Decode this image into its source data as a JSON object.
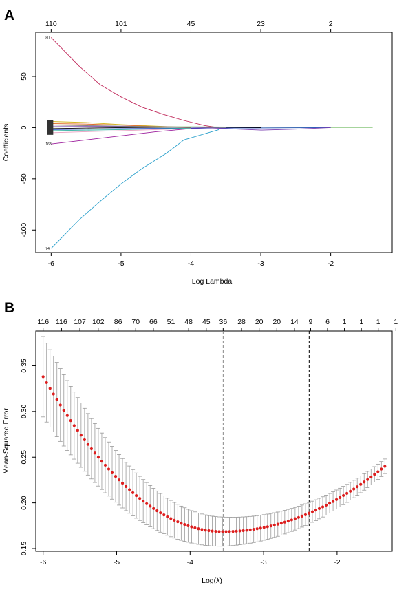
{
  "chart_data": [
    {
      "panel": "A",
      "type": "line",
      "xlabel": "Log Lambda",
      "ylabel": "Coefficients",
      "xlim": [
        -6.22,
        -1.12
      ],
      "ylim": [
        -122,
        93
      ],
      "x_ticks": [
        -6,
        -5,
        -4,
        -3,
        -2
      ],
      "y_ticks": [
        -100,
        -50,
        0,
        50
      ],
      "top_axis": [
        {
          "x": -6.0,
          "label": "110"
        },
        {
          "x": -5.0,
          "label": "101"
        },
        {
          "x": -4.0,
          "label": "45"
        },
        {
          "x": -3.0,
          "label": "23"
        },
        {
          "x": -2.0,
          "label": "2"
        }
      ],
      "series": [
        {
          "label": "80",
          "color": "#C0285A",
          "x": [
            -6.0,
            -5.6,
            -5.3,
            -5.0,
            -4.7,
            -4.4,
            -4.1,
            -3.8,
            -3.6
          ],
          "y": [
            88,
            60,
            42,
            30,
            20,
            13,
            7,
            2,
            0
          ]
        },
        {
          "label": "74",
          "color": "#2AA0CC",
          "x": [
            -6.0,
            -5.6,
            -5.3,
            -5.0,
            -4.7,
            -4.35,
            -4.1,
            -3.8,
            -3.6
          ],
          "y": [
            -118,
            -90,
            -72,
            -55,
            -40,
            -25,
            -12,
            -6,
            -2
          ]
        },
        {
          "label": "168",
          "color": "#9C1E9C",
          "x": [
            -6.0,
            -5.5,
            -5.0,
            -4.5,
            -4.0,
            -3.6
          ],
          "y": [
            -16,
            -12,
            -8,
            -4,
            -1,
            0
          ]
        },
        {
          "label": "",
          "color": "#4DA83A",
          "x": [
            -6.0,
            -5.0,
            -4.0,
            -3.0,
            -2.0,
            -1.4
          ],
          "y": [
            0.5,
            0.8,
            0.8,
            0.5,
            0.3,
            0.2
          ]
        },
        {
          "label": "",
          "color": "#D4B622",
          "x": [
            -6.0,
            -5.5,
            -5.0,
            -4.5,
            -4.0
          ],
          "y": [
            6,
            5,
            3,
            1.5,
            0
          ]
        },
        {
          "label": "",
          "color": "#E06A2B",
          "x": [
            -6.0,
            -5.5,
            -5.0,
            -4.5,
            -4.0
          ],
          "y": [
            4,
            3.5,
            2.5,
            1,
            0
          ]
        },
        {
          "label": "",
          "color": "#2850C8",
          "x": [
            -6.0,
            -5.5,
            -5.0,
            -4.0,
            -3.0,
            -2.0
          ],
          "y": [
            -2,
            -1.5,
            -1,
            -0.5,
            -0.3,
            0
          ]
        },
        {
          "label": "",
          "color": "#000000",
          "x": [
            -6.0,
            -5.0,
            -4.0,
            -3.0
          ],
          "y": [
            -1,
            0,
            0.5,
            0
          ]
        },
        {
          "label": "",
          "color": "#7A3FB0",
          "x": [
            -6.0,
            -5.0,
            -4.0,
            -3.5,
            -3.0,
            -2.5,
            -2.0
          ],
          "y": [
            1,
            1.2,
            0.5,
            -1,
            -2.5,
            -1.5,
            0
          ]
        },
        {
          "label": "",
          "color": "#E8A0C0",
          "x": [
            -6.0,
            -5.0,
            -4.0
          ],
          "y": [
            -5,
            -3,
            -1
          ]
        },
        {
          "label": "",
          "color": "#7F7F7F",
          "x": [
            -6.0,
            -5.0,
            -4.0,
            -3.5
          ],
          "y": [
            2.5,
            1.5,
            0.5,
            0
          ]
        },
        {
          "label": "",
          "color": "#30B0A0",
          "x": [
            -6.0,
            -5.0,
            -4.0
          ],
          "y": [
            -3,
            -2,
            -0.5
          ]
        }
      ],
      "stub_labels": [
        "80",
        "168",
        "74"
      ]
    },
    {
      "panel": "B",
      "type": "scatter",
      "xlabel": "Log(λ)",
      "ylabel": "Mean-Squared Error",
      "xlim": [
        -6.1,
        -1.25
      ],
      "ylim": [
        0.147,
        0.388
      ],
      "x_ticks": [
        -6,
        -5,
        -4,
        -3,
        -2
      ],
      "y_ticks": [
        0.15,
        0.2,
        0.25,
        0.3,
        0.35
      ],
      "y_tick_labels": [
        "0.15",
        "0.20",
        "0.25",
        "0.30",
        "0.35"
      ],
      "top_axis": [
        {
          "x": -6.0,
          "label": "116"
        },
        {
          "x": -5.75,
          "label": "116"
        },
        {
          "x": -5.5,
          "label": "107"
        },
        {
          "x": -5.25,
          "label": "102"
        },
        {
          "x": -4.98,
          "label": "86"
        },
        {
          "x": -4.74,
          "label": "70"
        },
        {
          "x": -4.5,
          "label": "66"
        },
        {
          "x": -4.26,
          "label": "51"
        },
        {
          "x": -4.02,
          "label": "48"
        },
        {
          "x": -3.78,
          "label": "45"
        },
        {
          "x": -3.55,
          "label": "36"
        },
        {
          "x": -3.3,
          "label": "28"
        },
        {
          "x": -3.06,
          "label": "20"
        },
        {
          "x": -2.82,
          "label": "20"
        },
        {
          "x": -2.58,
          "label": "14"
        },
        {
          "x": -2.36,
          "label": "9"
        },
        {
          "x": -2.13,
          "label": "6"
        },
        {
          "x": -1.9,
          "label": "1"
        },
        {
          "x": -1.67,
          "label": "1"
        },
        {
          "x": -1.44,
          "label": "1"
        },
        {
          "x": -1.2,
          "label": "1"
        }
      ],
      "cv_curve": {
        "x_start": -6.0,
        "x_end": -1.35,
        "n_points": 100,
        "min_x": -3.55,
        "min_y": 0.1685,
        "left_y": 0.338,
        "right_y": 0.24
      },
      "vlines": [
        {
          "name": "lambda.min",
          "x": -3.55,
          "color": "#888888"
        },
        {
          "name": "lambda.1se",
          "x": -2.38,
          "color": "#000000"
        }
      ]
    }
  ]
}
